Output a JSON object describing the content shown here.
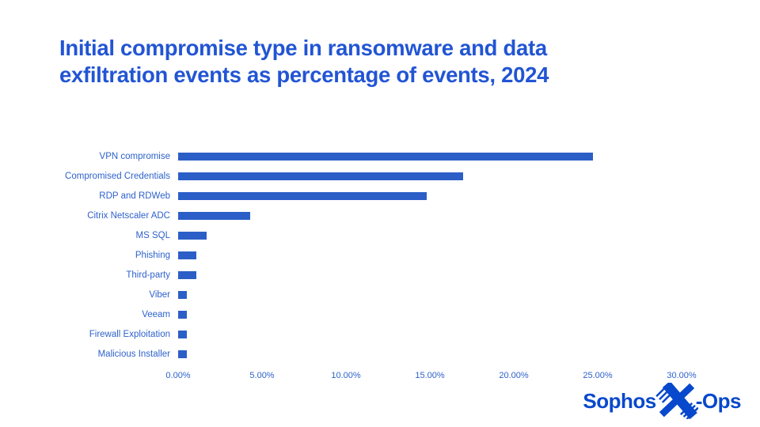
{
  "title": {
    "line1": "Initial compromise type in ransomware and data",
    "line2": "exfiltration events as percentage of events, 2024"
  },
  "chart_data": {
    "type": "bar",
    "orientation": "horizontal",
    "title": "Initial compromise type in ransomware and data exfiltration events as percentage of events, 2024",
    "categories": [
      "VPN compromise",
      "Compromised Credentials",
      "RDP and RDWeb",
      "Citrix Netscaler ADC",
      "MS SQL",
      "Phishing",
      "Third-party",
      "Viber",
      "Veeam",
      "Firewall Exploitation",
      "Malicious Installer"
    ],
    "values": [
      24.7,
      17.0,
      14.8,
      4.3,
      1.7,
      1.1,
      1.1,
      0.5,
      0.5,
      0.5,
      0.5
    ],
    "xlabel": "",
    "ylabel": "",
    "xlim": [
      0,
      30
    ],
    "x_ticks": [
      "0.00%",
      "5.00%",
      "10.00%",
      "15.00%",
      "20.00%",
      "25.00%",
      "30.00%"
    ],
    "grid": "off",
    "legend": "none",
    "bar_color": "#2b5fc7",
    "label_color": "#2e62cb",
    "title_color": "#2255d4"
  },
  "logo": {
    "prefix": "Sophos",
    "suffix": "-Ops",
    "icon": "x-ops-x-icon",
    "color": "#0848cc"
  }
}
